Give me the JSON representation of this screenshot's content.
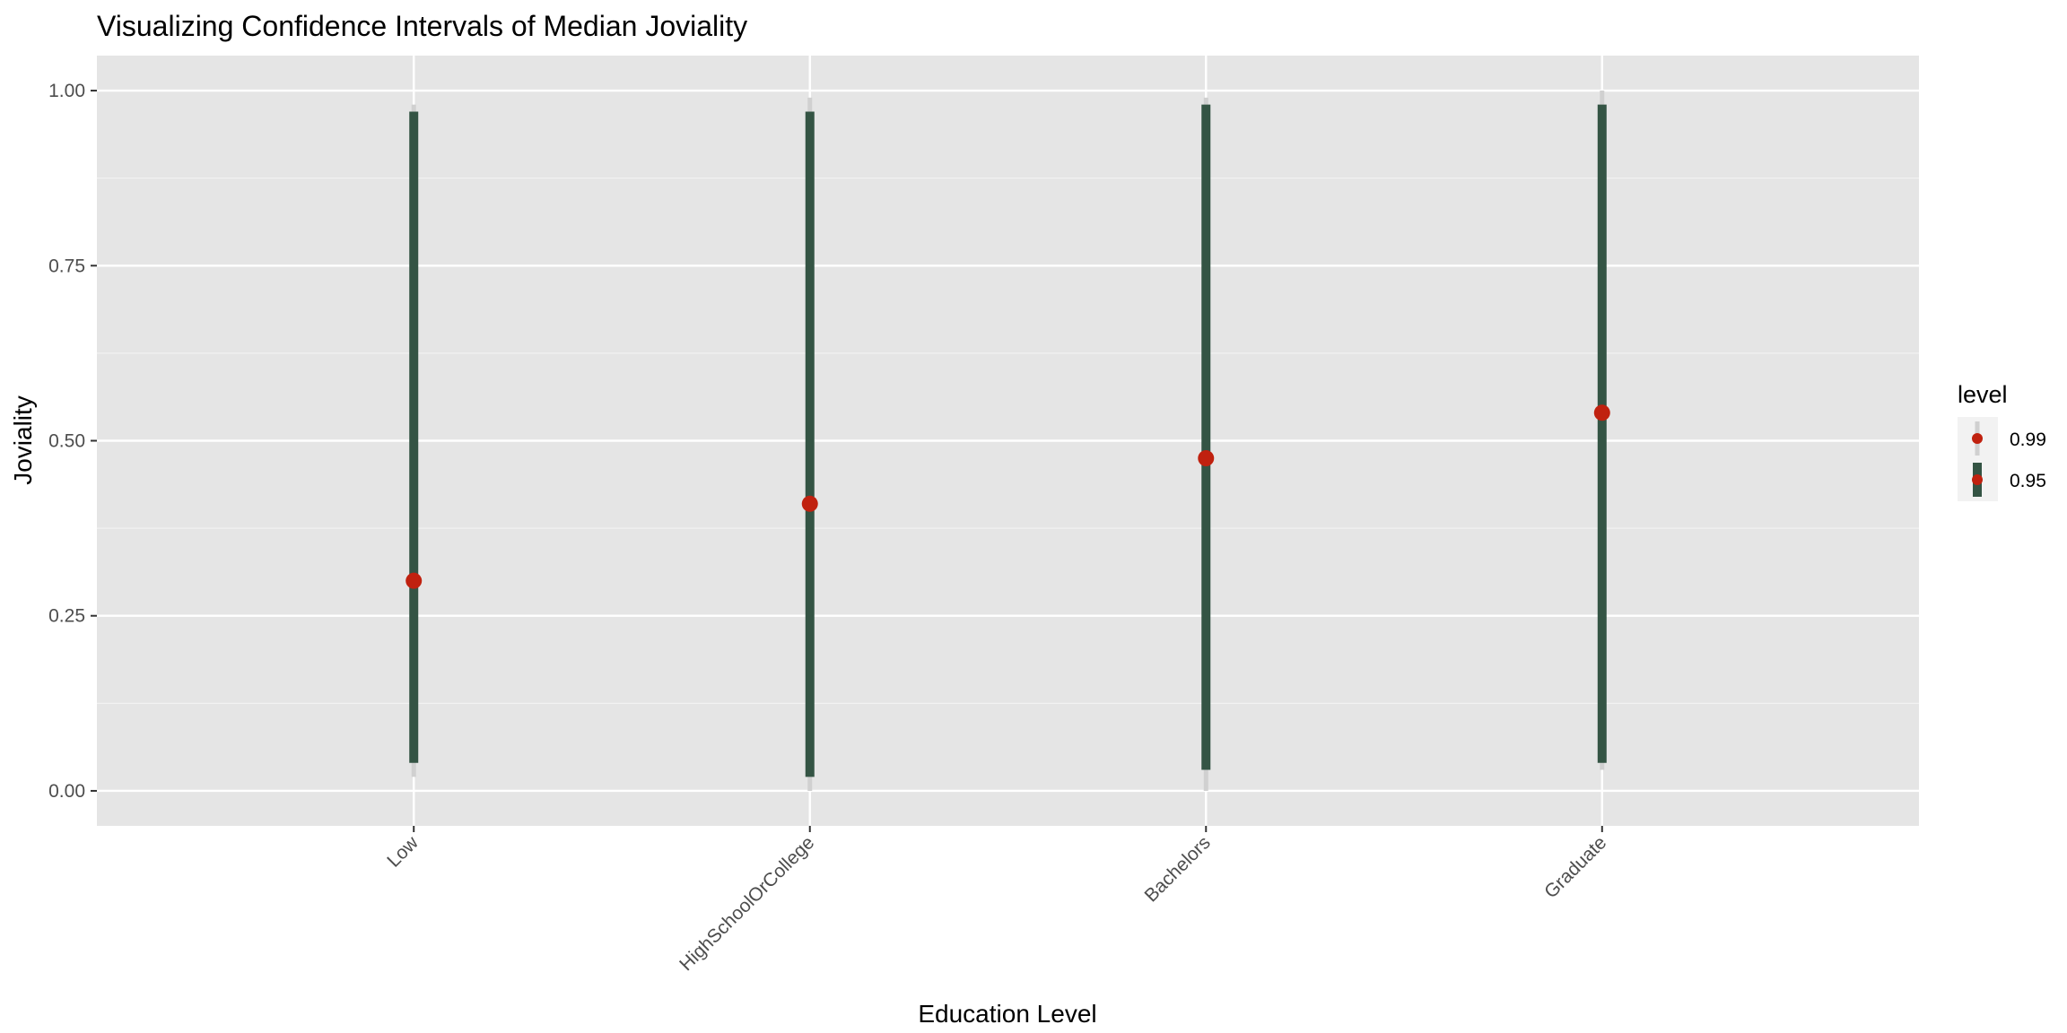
{
  "chart_data": {
    "type": "interval",
    "title": "Visualizing Confidence Intervals of Median Joviality",
    "xlabel": "Education Level",
    "ylabel": "Joviality",
    "categories": [
      "Low",
      "HighSchoolOrCollege",
      "Bachelors",
      "Graduate"
    ],
    "ylim": [
      -0.05,
      1.05
    ],
    "y_ticks": [
      0.0,
      0.25,
      0.5,
      0.75,
      1.0
    ],
    "y_tick_labels": [
      "0.00",
      "0.25",
      "0.50",
      "0.75",
      "1.00"
    ],
    "median": [
      0.3,
      0.41,
      0.475,
      0.54
    ],
    "series": [
      {
        "name": "0.99",
        "color": "#d0d0d0",
        "lower": [
          0.02,
          0.0,
          0.0,
          0.03
        ],
        "upper": [
          0.98,
          0.99,
          0.99,
          1.0
        ]
      },
      {
        "name": "0.95",
        "color": "#345444",
        "lower": [
          0.04,
          0.02,
          0.03,
          0.04
        ],
        "upper": [
          0.97,
          0.97,
          0.98,
          0.98
        ]
      }
    ],
    "point_color": "#c0210f",
    "legend": {
      "title": "level",
      "position": "right"
    },
    "grid": true,
    "panel_background": "#e5e5e5"
  }
}
